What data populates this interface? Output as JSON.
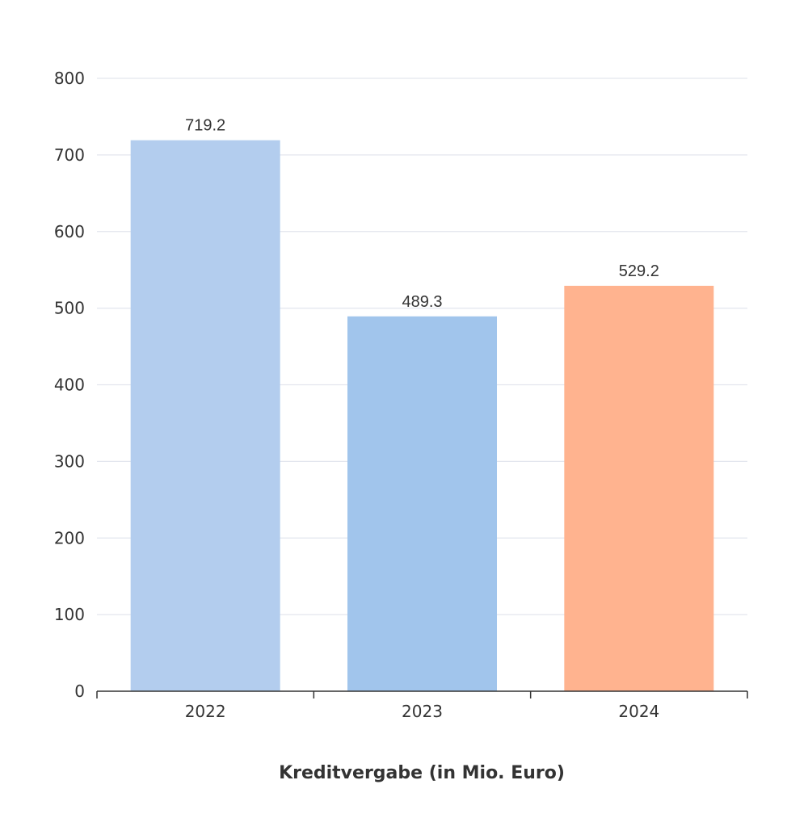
{
  "chart_data": {
    "type": "bar",
    "categories": [
      "2022",
      "2023",
      "2024"
    ],
    "values": [
      719.2,
      489.3,
      529.2
    ],
    "data_labels": [
      "719.2",
      "489.3",
      "529.2"
    ],
    "colors": [
      "#b3cdee",
      "#a1c5ec",
      "#ffb38f"
    ],
    "title": "",
    "xlabel": "Kreditvergabe (in Mio. Euro)",
    "ylabel": "",
    "ylim": [
      0,
      800
    ],
    "yticks": [
      0,
      100,
      200,
      300,
      400,
      500,
      600,
      700,
      800
    ],
    "ytick_labels": [
      "0",
      "100",
      "200",
      "300",
      "400",
      "500",
      "600",
      "700",
      "800"
    ],
    "grid": true,
    "legend": "none"
  }
}
